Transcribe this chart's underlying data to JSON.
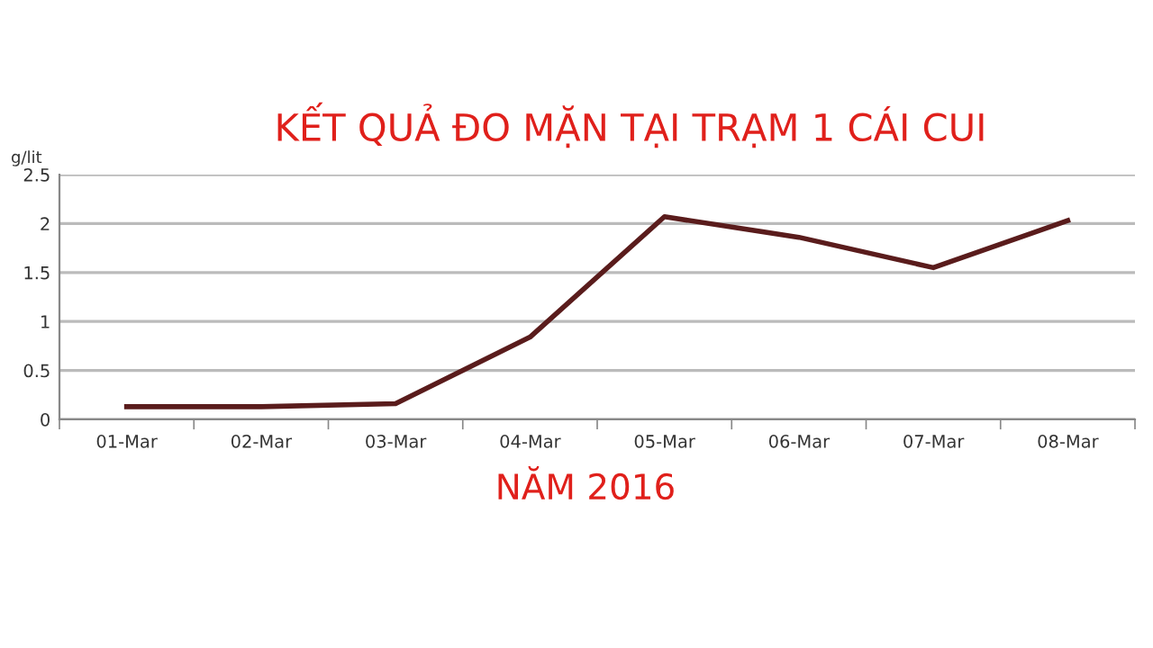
{
  "chart_data": {
    "type": "line",
    "title": "KẾT QUẢ ĐO MẶN TẠI TRẠM 1 CÁI CUI",
    "subtitle": "NĂM 2016",
    "ylabel": "g/lit",
    "categories": [
      "01-Mar",
      "02-Mar",
      "03-Mar",
      "04-Mar",
      "05-Mar",
      "06-Mar",
      "07-Mar",
      "08-Mar"
    ],
    "series": [
      {
        "color": "#5a1c1c",
        "values": [
          0.13,
          0.13,
          0.16,
          0.84,
          2.07,
          1.86,
          1.55,
          2.03
        ]
      }
    ],
    "ylim": [
      0,
      2.5
    ],
    "yticks": [
      0,
      0.5,
      1,
      1.5,
      2,
      2.5
    ],
    "grid": "y",
    "marker": "none",
    "line_style": "solid"
  }
}
